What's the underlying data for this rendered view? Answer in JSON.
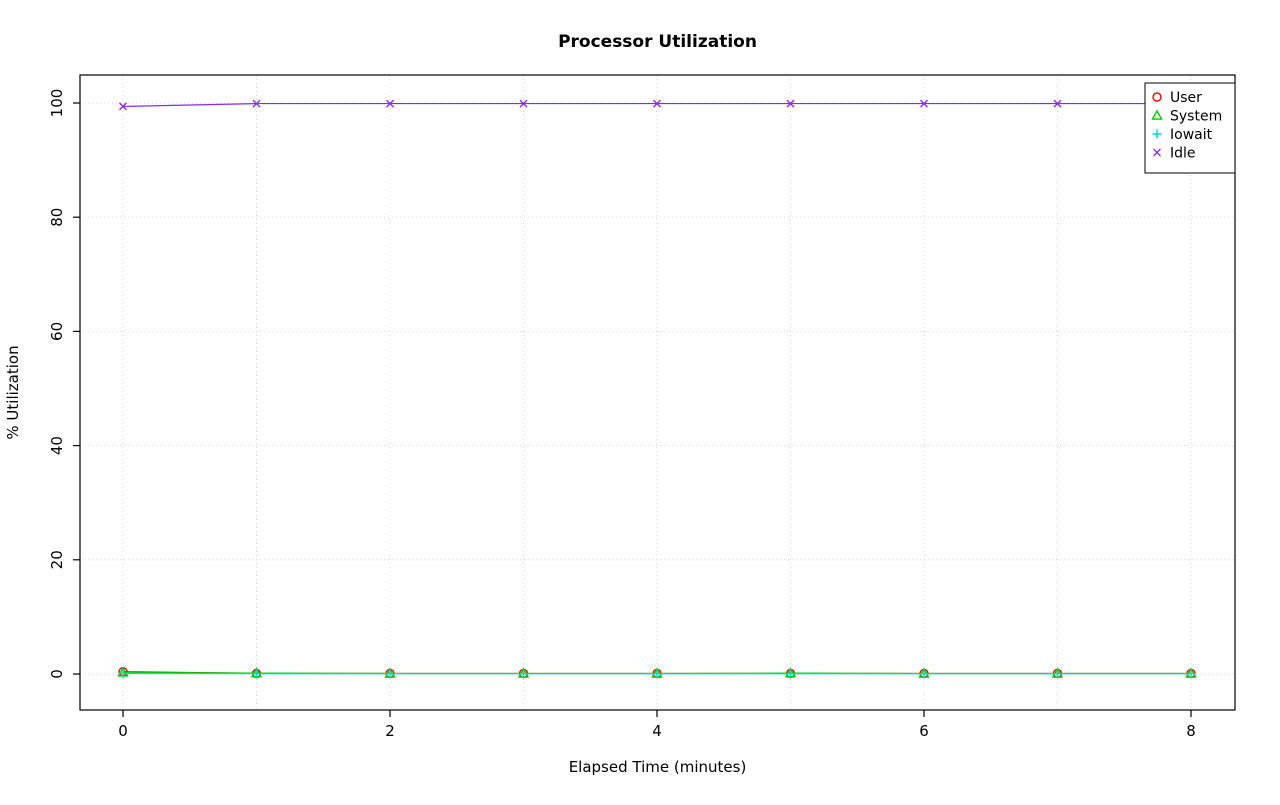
{
  "chart_data": {
    "type": "line",
    "title": "Processor Utilization",
    "xlabel": "Elapsed Time (minutes)",
    "ylabel": "% Utilization",
    "x": [
      0,
      1,
      2,
      3,
      4,
      5,
      6,
      7,
      8
    ],
    "xlim": [
      0,
      8
    ],
    "ylim": [
      0,
      100
    ],
    "xticks": [
      0,
      2,
      4,
      6,
      8
    ],
    "yticks": [
      0,
      20,
      40,
      60,
      80,
      100
    ],
    "grid": true,
    "grid_x_every": 1,
    "legend_position": "top-right",
    "legend_labels": [
      "User",
      "System",
      "Iowait",
      "Idle"
    ],
    "series": [
      {
        "name": "User",
        "color": "#FF0000",
        "marker": "circle",
        "values": [
          0.4,
          0.1,
          0.1,
          0.1,
          0.1,
          0.1,
          0.1,
          0.1,
          0.1
        ]
      },
      {
        "name": "System",
        "color": "#00CC00",
        "marker": "triangle",
        "values": [
          0.3,
          0.15,
          0.1,
          0.1,
          0.1,
          0.15,
          0.1,
          0.1,
          0.1
        ]
      },
      {
        "name": "Iowait",
        "color": "#00D5D5",
        "marker": "plus",
        "values": [
          0.1,
          0.05,
          0.05,
          0.05,
          0.05,
          0.05,
          0.05,
          0.05,
          0.05
        ]
      },
      {
        "name": "Idle",
        "color": "#8A2BE2",
        "marker": "x",
        "values": [
          99.4,
          99.9,
          99.9,
          99.9,
          99.9,
          99.9,
          99.9,
          99.9,
          99.9
        ]
      }
    ],
    "colors": {
      "grid": "#D3D3D3",
      "axis": "#000000",
      "background": "#FFFFFF"
    }
  }
}
